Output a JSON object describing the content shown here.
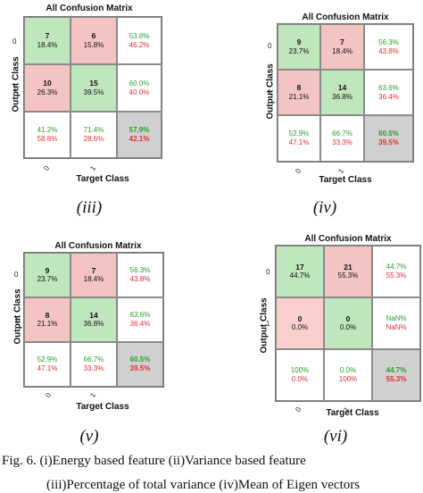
{
  "panels": [
    {
      "id": "iii",
      "title": "All Confusion Matrix",
      "ylabel": "Output Class",
      "xlabel": "Target Class",
      "row_ticks": [
        "0",
        "1"
      ],
      "col_ticks": [
        "0",
        "1"
      ],
      "cells": [
        [
          "7",
          "18.4%"
        ],
        [
          "6",
          "15.8%"
        ],
        [
          "53.8%",
          "46.2%"
        ],
        [
          "10",
          "26.3%"
        ],
        [
          "15",
          "39.5%"
        ],
        [
          "60.0%",
          "40.0%"
        ],
        [
          "41.2%",
          "58.8%"
        ],
        [
          "71.4%",
          "28.6%"
        ],
        [
          "57.9%",
          "42.1%"
        ]
      ],
      "label": "(iii)"
    },
    {
      "id": "iv",
      "title": "All Confusion Matrix",
      "ylabel": "Output Class",
      "xlabel": "Target Class",
      "row_ticks": [
        "0",
        "1"
      ],
      "col_ticks": [
        "0",
        "1"
      ],
      "cells": [
        [
          "9",
          "23.7%"
        ],
        [
          "7",
          "18.4%"
        ],
        [
          "56.3%",
          "43.8%"
        ],
        [
          "8",
          "21.1%"
        ],
        [
          "14",
          "36.8%"
        ],
        [
          "63.6%",
          "36.4%"
        ],
        [
          "52.9%",
          "47.1%"
        ],
        [
          "66.7%",
          "33.3%"
        ],
        [
          "60.5%",
          "39.5%"
        ]
      ],
      "label": "(iv)"
    },
    {
      "id": "v",
      "title": "All Confusion Matrix",
      "ylabel": "Output Class",
      "xlabel": "Target Class",
      "row_ticks": [
        "0",
        "1"
      ],
      "col_ticks": [
        "0",
        "1"
      ],
      "cells": [
        [
          "9",
          "23.7%"
        ],
        [
          "7",
          "18.4%"
        ],
        [
          "56.3%",
          "43.8%"
        ],
        [
          "8",
          "21.1%"
        ],
        [
          "14",
          "36.8%"
        ],
        [
          "63.6%",
          "36.4%"
        ],
        [
          "52.9%",
          "47.1%"
        ],
        [
          "66.7%",
          "33.3%"
        ],
        [
          "60.5%",
          "39.5%"
        ]
      ],
      "label": "(v)"
    },
    {
      "id": "vi",
      "title": "All Confusion Matrix",
      "ylabel": "Output Class",
      "xlabel": "Target Class",
      "row_ticks": [
        "0",
        "1"
      ],
      "col_ticks": [
        "0",
        "1"
      ],
      "cells": [
        [
          "17",
          "44.7%"
        ],
        [
          "21",
          "55.3%"
        ],
        [
          "44.7%",
          "55.3%"
        ],
        [
          "0",
          "0.0%"
        ],
        [
          "0",
          "0.0%"
        ],
        [
          "NaN%",
          "NaN%"
        ],
        [
          "100%",
          "0.0%"
        ],
        [
          "0.0%",
          "100%"
        ],
        [
          "44.7%",
          "55.3%"
        ]
      ],
      "label": "(vi)"
    }
  ],
  "caption": {
    "line1": "Fig. 6. (i)Energy based feature (ii)Variance based feature",
    "line2": "(iii)Percentage of total variance (iv)Mean of Eigen vectors"
  },
  "colors": {
    "correct": "#bfe6bd",
    "incorrect": "#f4c4c2",
    "summary": "#ffffff",
    "overall": "#d0d0d0",
    "pct_good": "#2ba02b",
    "pct_bad": "#e03030"
  }
}
